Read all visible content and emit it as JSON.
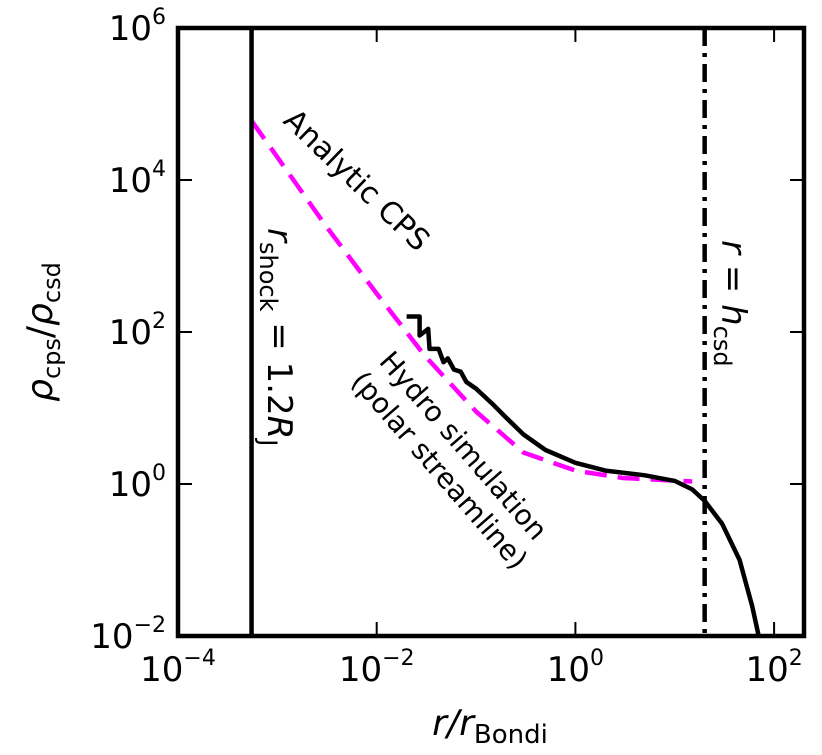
{
  "chart_data": {
    "type": "line",
    "x_scale": "log",
    "y_scale": "log",
    "xlim": [
      0.0001,
      200
    ],
    "ylim": [
      0.01,
      1000000
    ],
    "x_ticks": [
      {
        "value": 0.0001,
        "base": "10",
        "exp": "−4"
      },
      {
        "value": 0.01,
        "base": "10",
        "exp": "−2"
      },
      {
        "value": 1,
        "base": "10",
        "exp": "0"
      },
      {
        "value": 100,
        "base": "10",
        "exp": "2"
      }
    ],
    "y_ticks": [
      {
        "value": 0.01,
        "base": "10",
        "exp": "−2"
      },
      {
        "value": 1,
        "base": "10",
        "exp": "0"
      },
      {
        "value": 100,
        "base": "10",
        "exp": "2"
      },
      {
        "value": 10000,
        "base": "10",
        "exp": "4"
      },
      {
        "value": 1000000,
        "base": "10",
        "exp": "6"
      }
    ],
    "xlabel": {
      "main": "r/r",
      "sub": "Bondi"
    },
    "ylabel": {
      "rho1": "ρ",
      "sub1": "cps",
      "slash": "/",
      "rho2": "ρ",
      "sub2": "csd"
    },
    "series": [
      {
        "name": "Analytic CPS",
        "style": "dashed",
        "color": "#ff00ff",
        "x": [
          0.00055,
          0.001,
          0.003,
          0.01,
          0.03,
          0.1,
          0.3,
          1,
          3,
          15
        ],
        "y": [
          60000,
          20000,
          2600,
          320,
          50,
          9,
          2.6,
          1.5,
          1.2,
          1.08
        ]
      },
      {
        "name": "Hydro simulation (polar streamline)",
        "style": "solid",
        "color": "#000000",
        "x": [
          0.02,
          0.027,
          0.027,
          0.033,
          0.034,
          0.042,
          0.047,
          0.052,
          0.06,
          0.07,
          0.08,
          0.1,
          0.15,
          0.2,
          0.3,
          0.5,
          1,
          2,
          5,
          10,
          15,
          20,
          30,
          45,
          60,
          70
        ],
        "y": [
          160,
          160,
          90,
          110,
          60,
          60,
          40,
          45,
          32,
          30,
          22,
          18,
          11,
          7.5,
          4.5,
          2.8,
          1.9,
          1.5,
          1.3,
          1.1,
          0.85,
          0.6,
          0.3,
          0.1,
          0.025,
          0.01
        ]
      }
    ],
    "vlines": [
      {
        "x": 0.00055,
        "style": "solid"
      },
      {
        "x": 20,
        "style": "dashdot"
      }
    ],
    "annotations": {
      "analytic": "Analytic CPS",
      "hydro_line1": "Hydro simulation",
      "hydro_line2": "(polar streamline)",
      "rshock": {
        "r": "r",
        "sub": "shock",
        "eq": " = 1.2",
        "R": "R",
        "Rsub": "J"
      },
      "rh": {
        "r": "r",
        "eq": " = ",
        "h": "h",
        "sub": "csd"
      }
    },
    "grid": false,
    "legend": "none"
  }
}
